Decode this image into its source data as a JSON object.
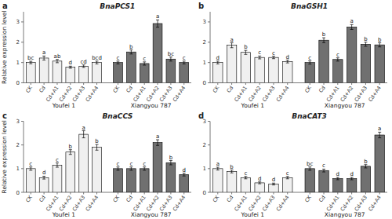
{
  "chart_data": [
    {
      "type": "bar",
      "title": "BnaPCS1",
      "annotations": [
        "a"
      ],
      "ylabel": "Relative expression level",
      "categories": [
        "CK",
        "Cd",
        "Cd+A1",
        "Cd+A2",
        "Cd+A3",
        "Cd+A4"
      ],
      "ylim": [
        0,
        3.5
      ],
      "yticks": [
        0,
        1,
        2,
        3
      ],
      "series": [
        {
          "name": "Youfei 1",
          "color": "#f0f0f0",
          "values": [
            1.0,
            1.22,
            1.07,
            0.77,
            0.82,
            1.0
          ],
          "errors": [
            0.06,
            0.1,
            0.08,
            0.05,
            0.06,
            0.07
          ],
          "letters": [
            "bc",
            "a",
            "ab",
            "d",
            "cd",
            "bcd"
          ]
        },
        {
          "name": "Xiangyou 787",
          "color": "#707070",
          "values": [
            1.0,
            1.52,
            0.95,
            2.92,
            1.17,
            1.0
          ],
          "errors": [
            0.07,
            0.1,
            0.08,
            0.18,
            0.1,
            0.07
          ],
          "letters": [
            "c",
            "b",
            "c",
            "a",
            "bc",
            "c"
          ]
        }
      ]
    },
    {
      "type": "bar",
      "title": "BnaGSH1",
      "annotations": [
        "b"
      ],
      "categories": [
        "CK",
        "Cd",
        "Cd+A1",
        "Cd+A2",
        "Cd+A3",
        "Cd+A4"
      ],
      "ylim": [
        0,
        3.5
      ],
      "yticks": [
        0,
        1,
        2,
        3
      ],
      "series": [
        {
          "name": "Youfei 1",
          "color": "#f0f0f0",
          "values": [
            1.0,
            1.85,
            1.5,
            1.25,
            1.25,
            1.05
          ],
          "errors": [
            0.07,
            0.12,
            0.1,
            0.07,
            0.06,
            0.07
          ],
          "letters": [
            "d",
            "a",
            "b",
            "c",
            "c",
            "d"
          ]
        },
        {
          "name": "Xiangyou 787",
          "color": "#707070",
          "values": [
            1.0,
            2.1,
            1.15,
            2.75,
            1.9,
            1.87
          ],
          "errors": [
            0.08,
            0.12,
            0.08,
            0.12,
            0.1,
            0.1
          ],
          "letters": [
            "c",
            "b",
            "c",
            "a",
            "b",
            "b"
          ]
        }
      ]
    },
    {
      "type": "bar",
      "title": "BnaCCS",
      "annotations": [
        "c"
      ],
      "ylabel": "Relative expression level",
      "categories": [
        "CK",
        "Cd",
        "Cd+A1",
        "Cd+A2",
        "Cd+A3",
        "Cd+A4"
      ],
      "ylim": [
        0,
        3.0
      ],
      "yticks": [
        0,
        1,
        2,
        3
      ],
      "series": [
        {
          "name": "Youfei 1",
          "color": "#f0f0f0",
          "values": [
            1.0,
            0.62,
            1.15,
            1.7,
            2.45,
            1.9
          ],
          "errors": [
            0.07,
            0.06,
            0.09,
            0.1,
            0.15,
            0.12
          ],
          "letters": [
            "c",
            "d",
            "c",
            "b",
            "a",
            "b"
          ]
        },
        {
          "name": "Xiangyou 787",
          "color": "#707070",
          "values": [
            1.0,
            1.0,
            1.0,
            2.1,
            1.25,
            0.75
          ],
          "errors": [
            0.07,
            0.07,
            0.07,
            0.12,
            0.09,
            0.06
          ],
          "letters": [
            "c",
            "c",
            "c",
            "a",
            "b",
            "d"
          ]
        }
      ]
    },
    {
      "type": "bar",
      "title": "BnaCAT3",
      "annotations": [
        "d"
      ],
      "categories": [
        "CK",
        "Cd",
        "Cd+A1",
        "Cd+A2",
        "Cd+A3",
        "Cd+A4"
      ],
      "ylim": [
        0,
        3.0
      ],
      "yticks": [
        0,
        1,
        2,
        3
      ],
      "series": [
        {
          "name": "Youfei 1",
          "color": "#f0f0f0",
          "values": [
            1.0,
            0.88,
            0.62,
            0.4,
            0.35,
            0.62
          ],
          "errors": [
            0.06,
            0.06,
            0.05,
            0.04,
            0.04,
            0.05
          ],
          "letters": [
            "a",
            "b",
            "c",
            "d",
            "d",
            "c"
          ]
        },
        {
          "name": "Xiangyou 787",
          "color": "#707070",
          "values": [
            1.0,
            0.92,
            0.58,
            0.58,
            1.1,
            2.42
          ],
          "errors": [
            0.07,
            0.06,
            0.05,
            0.05,
            0.07,
            0.12
          ],
          "letters": [
            "bc",
            "c",
            "d",
            "d",
            "b",
            "a"
          ]
        }
      ]
    }
  ]
}
